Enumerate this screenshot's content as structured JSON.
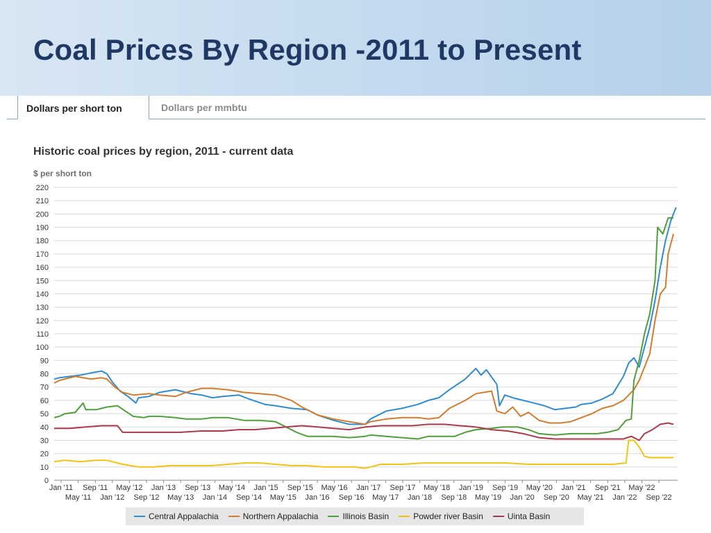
{
  "header": {
    "title": "Coal Prices By Region -2011 to Present"
  },
  "tabs": [
    {
      "label": "Dollars per short ton",
      "active": true
    },
    {
      "label": "Dollars per mmbtu",
      "active": false
    }
  ],
  "chart_data": {
    "type": "line",
    "title": "Historic coal prices by region, 2011 - current data",
    "ylabel": "$ per short ton",
    "xlabel": "",
    "ylim": [
      0,
      220
    ],
    "yticks": [
      0,
      10,
      20,
      30,
      40,
      50,
      60,
      70,
      80,
      90,
      100,
      110,
      120,
      130,
      140,
      150,
      160,
      170,
      180,
      190,
      200,
      210,
      220
    ],
    "xlim": [
      2011.0,
      2022.83
    ],
    "grid": true,
    "legend": "bottom",
    "x_tick_labels_top": [
      "Jan '11",
      "Sep '11",
      "May '12",
      "Jan '13",
      "Sep '13",
      "May '14",
      "Jan '15",
      "Sep '15",
      "May '16",
      "Jan '17",
      "Sep '17",
      "May '18",
      "Jan '19",
      "Sep '19",
      "May '20",
      "Jan '21",
      "Sep '21",
      "May '22"
    ],
    "x_tick_labels_bottom": [
      "May '11",
      "Jan '12",
      "Sep '12",
      "May '13",
      "Jan '14",
      "Sep '14",
      "May '15",
      "Jan '16",
      "Sep '16",
      "May '17",
      "Jan '18",
      "Sep '18",
      "May '19",
      "Jan '20",
      "Sep '20",
      "May '21",
      "Jan '22",
      "Sep '22"
    ],
    "series": [
      {
        "name": "Central Appalachia",
        "color": "#2e8bd0",
        "points": [
          [
            2011.0,
            76
          ],
          [
            2011.1,
            77
          ],
          [
            2011.3,
            78
          ],
          [
            2011.5,
            79
          ],
          [
            2011.75,
            81
          ],
          [
            2011.9,
            82
          ],
          [
            2012.0,
            80
          ],
          [
            2012.1,
            74
          ],
          [
            2012.25,
            67
          ],
          [
            2012.4,
            63
          ],
          [
            2012.55,
            58
          ],
          [
            2012.6,
            62
          ],
          [
            2012.8,
            63
          ],
          [
            2013.0,
            66
          ],
          [
            2013.3,
            68
          ],
          [
            2013.6,
            65
          ],
          [
            2013.8,
            64
          ],
          [
            2014.0,
            62
          ],
          [
            2014.2,
            63
          ],
          [
            2014.5,
            64
          ],
          [
            2014.7,
            61
          ],
          [
            2015.0,
            57
          ],
          [
            2015.2,
            56
          ],
          [
            2015.5,
            54
          ],
          [
            2015.8,
            53
          ],
          [
            2016.0,
            49
          ],
          [
            2016.3,
            45
          ],
          [
            2016.6,
            42
          ],
          [
            2016.9,
            42
          ],
          [
            2017.0,
            46
          ],
          [
            2017.3,
            52
          ],
          [
            2017.6,
            54
          ],
          [
            2017.9,
            57
          ],
          [
            2018.1,
            60
          ],
          [
            2018.3,
            62
          ],
          [
            2018.5,
            68
          ],
          [
            2018.8,
            76
          ],
          [
            2019.0,
            84
          ],
          [
            2019.1,
            79
          ],
          [
            2019.2,
            83
          ],
          [
            2019.4,
            72
          ],
          [
            2019.45,
            56
          ],
          [
            2019.55,
            64
          ],
          [
            2019.7,
            62
          ],
          [
            2019.9,
            60
          ],
          [
            2020.1,
            58
          ],
          [
            2020.3,
            56
          ],
          [
            2020.5,
            53
          ],
          [
            2020.7,
            54
          ],
          [
            2020.9,
            55
          ],
          [
            2021.0,
            57
          ],
          [
            2021.2,
            58
          ],
          [
            2021.4,
            61
          ],
          [
            2021.6,
            65
          ],
          [
            2021.8,
            78
          ],
          [
            2021.9,
            88
          ],
          [
            2022.0,
            92
          ],
          [
            2022.1,
            85
          ],
          [
            2022.2,
            100
          ],
          [
            2022.3,
            115
          ],
          [
            2022.4,
            135
          ],
          [
            2022.5,
            160
          ],
          [
            2022.6,
            180
          ],
          [
            2022.7,
            195
          ],
          [
            2022.8,
            205
          ]
        ]
      },
      {
        "name": "Northern Appalachia",
        "color": "#d07c2e",
        "points": [
          [
            2011.0,
            73
          ],
          [
            2011.1,
            75
          ],
          [
            2011.4,
            78
          ],
          [
            2011.7,
            76
          ],
          [
            2011.9,
            77
          ],
          [
            2012.0,
            76
          ],
          [
            2012.15,
            70
          ],
          [
            2012.3,
            66
          ],
          [
            2012.5,
            64
          ],
          [
            2012.8,
            65
          ],
          [
            2013.0,
            64
          ],
          [
            2013.3,
            63
          ],
          [
            2013.5,
            66
          ],
          [
            2013.8,
            69
          ],
          [
            2014.0,
            69
          ],
          [
            2014.3,
            68
          ],
          [
            2014.6,
            66
          ],
          [
            2014.9,
            65
          ],
          [
            2015.2,
            64
          ],
          [
            2015.5,
            60
          ],
          [
            2015.7,
            55
          ],
          [
            2016.0,
            49
          ],
          [
            2016.3,
            46
          ],
          [
            2016.6,
            44
          ],
          [
            2016.9,
            42
          ],
          [
            2017.0,
            44
          ],
          [
            2017.3,
            46
          ],
          [
            2017.6,
            47
          ],
          [
            2017.9,
            47
          ],
          [
            2018.1,
            46
          ],
          [
            2018.3,
            47
          ],
          [
            2018.5,
            54
          ],
          [
            2018.8,
            60
          ],
          [
            2019.0,
            65
          ],
          [
            2019.3,
            67
          ],
          [
            2019.4,
            52
          ],
          [
            2019.55,
            50
          ],
          [
            2019.7,
            55
          ],
          [
            2019.85,
            48
          ],
          [
            2020.0,
            51
          ],
          [
            2020.2,
            45
          ],
          [
            2020.4,
            43
          ],
          [
            2020.6,
            43
          ],
          [
            2020.8,
            44
          ],
          [
            2021.0,
            47
          ],
          [
            2021.2,
            50
          ],
          [
            2021.4,
            54
          ],
          [
            2021.6,
            56
          ],
          [
            2021.8,
            60
          ],
          [
            2022.0,
            68
          ],
          [
            2022.1,
            75
          ],
          [
            2022.2,
            85
          ],
          [
            2022.3,
            95
          ],
          [
            2022.4,
            120
          ],
          [
            2022.5,
            140
          ],
          [
            2022.6,
            145
          ],
          [
            2022.65,
            170
          ],
          [
            2022.75,
            185
          ]
        ]
      },
      {
        "name": "Illinois Basin",
        "color": "#4e9e3a",
        "points": [
          [
            2011.0,
            47
          ],
          [
            2011.1,
            48
          ],
          [
            2011.2,
            50
          ],
          [
            2011.4,
            51
          ],
          [
            2011.55,
            58
          ],
          [
            2011.6,
            53
          ],
          [
            2011.8,
            53
          ],
          [
            2012.0,
            55
          ],
          [
            2012.2,
            56
          ],
          [
            2012.35,
            52
          ],
          [
            2012.5,
            48
          ],
          [
            2012.7,
            47
          ],
          [
            2012.8,
            48
          ],
          [
            2013.0,
            48
          ],
          [
            2013.3,
            47
          ],
          [
            2013.5,
            46
          ],
          [
            2013.8,
            46
          ],
          [
            2014.0,
            47
          ],
          [
            2014.3,
            47
          ],
          [
            2014.6,
            45
          ],
          [
            2014.9,
            45
          ],
          [
            2015.2,
            44
          ],
          [
            2015.4,
            40
          ],
          [
            2015.6,
            36
          ],
          [
            2015.8,
            33
          ],
          [
            2016.0,
            33
          ],
          [
            2016.3,
            33
          ],
          [
            2016.6,
            32
          ],
          [
            2016.9,
            33
          ],
          [
            2017.0,
            34
          ],
          [
            2017.3,
            33
          ],
          [
            2017.6,
            32
          ],
          [
            2017.9,
            31
          ],
          [
            2018.1,
            33
          ],
          [
            2018.3,
            33
          ],
          [
            2018.6,
            33
          ],
          [
            2018.8,
            36
          ],
          [
            2019.0,
            38
          ],
          [
            2019.3,
            39
          ],
          [
            2019.5,
            40
          ],
          [
            2019.8,
            40
          ],
          [
            2020.0,
            38
          ],
          [
            2020.2,
            35
          ],
          [
            2020.5,
            34
          ],
          [
            2020.8,
            35
          ],
          [
            2021.0,
            35
          ],
          [
            2021.3,
            35
          ],
          [
            2021.5,
            36
          ],
          [
            2021.7,
            38
          ],
          [
            2021.85,
            45
          ],
          [
            2021.95,
            46
          ],
          [
            2022.0,
            75
          ],
          [
            2022.1,
            90
          ],
          [
            2022.2,
            110
          ],
          [
            2022.3,
            125
          ],
          [
            2022.4,
            150
          ],
          [
            2022.45,
            190
          ],
          [
            2022.55,
            185
          ],
          [
            2022.65,
            197
          ],
          [
            2022.75,
            197
          ]
        ]
      },
      {
        "name": "Powder river Basin",
        "color": "#f2c314",
        "points": [
          [
            2011.0,
            14
          ],
          [
            2011.2,
            15
          ],
          [
            2011.5,
            14
          ],
          [
            2011.8,
            15
          ],
          [
            2012.0,
            15
          ],
          [
            2012.3,
            12
          ],
          [
            2012.6,
            10
          ],
          [
            2012.9,
            10
          ],
          [
            2013.2,
            11
          ],
          [
            2013.6,
            11
          ],
          [
            2014.0,
            11
          ],
          [
            2014.3,
            12
          ],
          [
            2014.6,
            13
          ],
          [
            2014.9,
            13
          ],
          [
            2015.2,
            12
          ],
          [
            2015.5,
            11
          ],
          [
            2015.8,
            11
          ],
          [
            2016.1,
            10
          ],
          [
            2016.4,
            10
          ],
          [
            2016.7,
            10
          ],
          [
            2016.9,
            9
          ],
          [
            2017.0,
            10
          ],
          [
            2017.2,
            12
          ],
          [
            2017.6,
            12
          ],
          [
            2018.0,
            13
          ],
          [
            2018.4,
            13
          ],
          [
            2018.8,
            13
          ],
          [
            2019.2,
            13
          ],
          [
            2019.6,
            13
          ],
          [
            2020.0,
            12
          ],
          [
            2020.4,
            12
          ],
          [
            2020.8,
            12
          ],
          [
            2021.2,
            12
          ],
          [
            2021.6,
            12
          ],
          [
            2021.85,
            13
          ],
          [
            2021.9,
            30
          ],
          [
            2022.0,
            30
          ],
          [
            2022.1,
            25
          ],
          [
            2022.2,
            18
          ],
          [
            2022.3,
            17
          ],
          [
            2022.5,
            17
          ],
          [
            2022.75,
            17
          ]
        ]
      },
      {
        "name": "Uinta Basin",
        "color": "#a83b4a",
        "points": [
          [
            2011.0,
            39
          ],
          [
            2011.3,
            39
          ],
          [
            2011.6,
            40
          ],
          [
            2011.9,
            41
          ],
          [
            2012.2,
            41
          ],
          [
            2012.3,
            36
          ],
          [
            2012.6,
            36
          ],
          [
            2013.0,
            36
          ],
          [
            2013.4,
            36
          ],
          [
            2013.8,
            37
          ],
          [
            2014.2,
            37
          ],
          [
            2014.5,
            38
          ],
          [
            2014.8,
            38
          ],
          [
            2015.1,
            39
          ],
          [
            2015.4,
            40
          ],
          [
            2015.7,
            41
          ],
          [
            2016.0,
            40
          ],
          [
            2016.3,
            39
          ],
          [
            2016.6,
            38
          ],
          [
            2016.9,
            40
          ],
          [
            2017.2,
            41
          ],
          [
            2017.5,
            41
          ],
          [
            2017.8,
            41
          ],
          [
            2018.1,
            42
          ],
          [
            2018.4,
            42
          ],
          [
            2018.7,
            41
          ],
          [
            2019.0,
            40
          ],
          [
            2019.3,
            38
          ],
          [
            2019.6,
            37
          ],
          [
            2019.9,
            35
          ],
          [
            2020.2,
            32
          ],
          [
            2020.5,
            31
          ],
          [
            2020.8,
            31
          ],
          [
            2021.1,
            31
          ],
          [
            2021.4,
            31
          ],
          [
            2021.6,
            31
          ],
          [
            2021.8,
            31
          ],
          [
            2021.95,
            33
          ],
          [
            2022.1,
            30
          ],
          [
            2022.2,
            35
          ],
          [
            2022.35,
            38
          ],
          [
            2022.5,
            42
          ],
          [
            2022.65,
            43
          ],
          [
            2022.75,
            42
          ]
        ]
      }
    ]
  }
}
